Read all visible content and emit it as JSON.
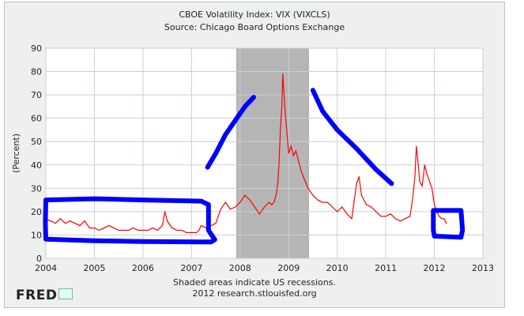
{
  "chart_data": {
    "type": "line",
    "title": "CBOE Volatility Index: VIX (VIXCLS)",
    "subtitle": "Source: Chicago Board Options Exchange",
    "ylabel": "(Percent)",
    "xlabel": "",
    "xlim": [
      2004,
      2013
    ],
    "ylim": [
      0,
      90
    ],
    "x_ticks": [
      "2004",
      "2005",
      "2006",
      "2007",
      "2008",
      "2009",
      "2010",
      "2011",
      "2012",
      "2013"
    ],
    "y_ticks": [
      "0",
      "10",
      "20",
      "30",
      "40",
      "50",
      "60",
      "70",
      "80",
      "90"
    ],
    "grid": true,
    "recession_shading": [
      {
        "start": 2007.92,
        "end": 2009.42
      }
    ],
    "series": [
      {
        "color": "#ff0000",
        "x": [
          2004.0,
          2004.1,
          2004.2,
          2004.3,
          2004.4,
          2004.5,
          2004.6,
          2004.7,
          2004.8,
          2004.9,
          2005.0,
          2005.1,
          2005.2,
          2005.3,
          2005.4,
          2005.5,
          2005.6,
          2005.7,
          2005.8,
          2005.9,
          2006.0,
          2006.1,
          2006.2,
          2006.3,
          2006.4,
          2006.45,
          2006.5,
          2006.6,
          2006.7,
          2006.8,
          2006.9,
          2007.0,
          2007.1,
          2007.15,
          2007.2,
          2007.3,
          2007.4,
          2007.5,
          2007.55,
          2007.6,
          2007.7,
          2007.8,
          2007.9,
          2008.0,
          2008.1,
          2008.2,
          2008.3,
          2008.4,
          2008.5,
          2008.6,
          2008.65,
          2008.7,
          2008.75,
          2008.78,
          2008.8,
          2008.83,
          2008.86,
          2008.88,
          2008.9,
          2008.93,
          2008.96,
          2009.0,
          2009.05,
          2009.1,
          2009.15,
          2009.2,
          2009.25,
          2009.3,
          2009.4,
          2009.5,
          2009.6,
          2009.7,
          2009.8,
          2009.9,
          2010.0,
          2010.1,
          2010.2,
          2010.3,
          2010.35,
          2010.4,
          2010.45,
          2010.5,
          2010.6,
          2010.7,
          2010.8,
          2010.9,
          2011.0,
          2011.1,
          2011.2,
          2011.3,
          2011.4,
          2011.5,
          2011.55,
          2011.6,
          2011.63,
          2011.66,
          2011.7,
          2011.75,
          2011.8,
          2011.85,
          2011.9,
          2011.95,
          2012.0,
          2012.05,
          2012.1,
          2012.15,
          2012.2,
          2012.25
        ],
        "values": [
          17,
          16,
          15,
          17,
          15,
          16,
          15,
          14,
          16,
          13,
          13,
          12,
          13,
          14,
          13,
          12,
          12,
          12,
          13,
          12,
          12,
          12,
          13,
          12,
          14,
          20,
          16,
          13,
          12,
          12,
          11,
          11,
          11,
          12,
          14,
          13,
          14,
          15,
          18,
          21,
          24,
          21,
          22,
          24,
          27,
          25,
          22,
          19,
          22,
          24,
          23,
          24,
          28,
          33,
          40,
          55,
          65,
          79,
          72,
          62,
          55,
          45,
          48,
          44,
          46,
          42,
          38,
          35,
          30,
          27,
          25,
          24,
          24,
          22,
          20,
          22,
          19,
          17,
          25,
          32,
          35,
          27,
          23,
          22,
          20,
          18,
          18,
          19,
          17,
          16,
          17,
          18,
          25,
          35,
          48,
          42,
          33,
          31,
          40,
          36,
          33,
          30,
          23,
          20,
          18,
          17,
          17,
          15
        ]
      }
    ],
    "annotations": {
      "note": "Shaded areas indicate US recessions.",
      "credit": "2012 research.stlouisfed.org",
      "logo": "FRED"
    }
  }
}
